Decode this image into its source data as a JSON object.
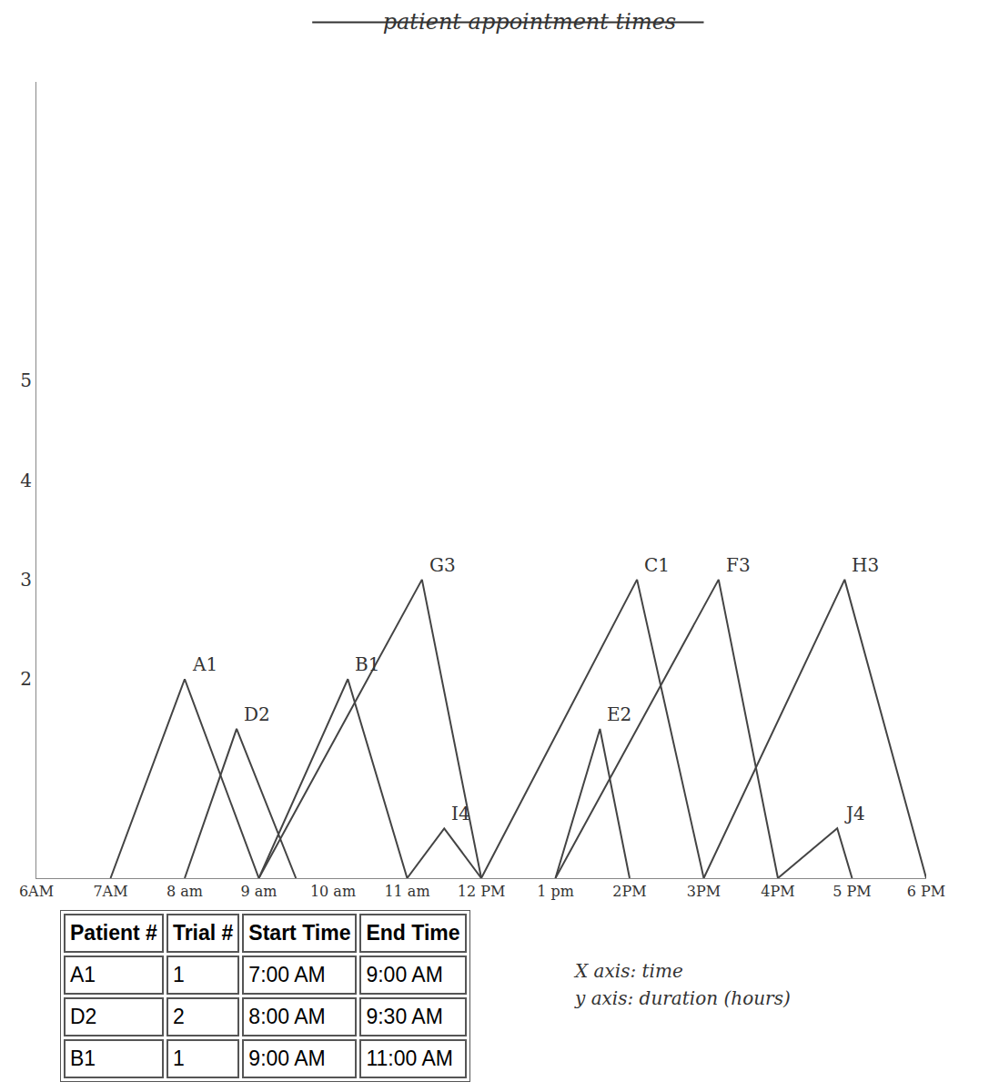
{
  "chart_data": {
    "type": "line",
    "title": "patient appointment times",
    "xlim": [
      6,
      18
    ],
    "xticks": [
      {
        "value": 6,
        "label": "6AM"
      },
      {
        "value": 7,
        "label": "7AM"
      },
      {
        "value": 8,
        "label": "8 am"
      },
      {
        "value": 9,
        "label": "9 am"
      },
      {
        "value": 10,
        "label": "10 am"
      },
      {
        "value": 11,
        "label": "11 am"
      },
      {
        "value": 12,
        "label": "12 PM"
      },
      {
        "value": 13,
        "label": "1 pm"
      },
      {
        "value": 14,
        "label": "2PM"
      },
      {
        "value": 15,
        "label": "3PM"
      },
      {
        "value": 16,
        "label": "4PM"
      },
      {
        "value": 17,
        "label": "5 PM"
      },
      {
        "value": 18,
        "label": "6 PM"
      }
    ],
    "ylim": [
      0,
      8
    ],
    "yticks": [
      2,
      3,
      4,
      5
    ],
    "grid": false,
    "series": [
      {
        "name": "A1",
        "color": "#444444",
        "x": [
          7,
          8,
          9
        ],
        "values": [
          0,
          2,
          0
        ]
      },
      {
        "name": "D2",
        "color": "#444444",
        "x": [
          8,
          8.7,
          9.5
        ],
        "values": [
          0,
          1.5,
          0
        ]
      },
      {
        "name": "B1",
        "color": "#444444",
        "x": [
          9,
          10.2,
          11
        ],
        "values": [
          0,
          2,
          0
        ]
      },
      {
        "name": "G3",
        "color": "#444444",
        "x": [
          9,
          11.2,
          12
        ],
        "values": [
          0,
          3,
          0
        ]
      },
      {
        "name": "I4",
        "color": "#444444",
        "x": [
          11,
          11.5,
          12
        ],
        "values": [
          0,
          0.5,
          0
        ]
      },
      {
        "name": "C1",
        "color": "#444444",
        "x": [
          12,
          14.1,
          15
        ],
        "values": [
          0,
          3,
          0
        ]
      },
      {
        "name": "E2",
        "color": "#444444",
        "x": [
          13,
          13.6,
          14
        ],
        "values": [
          0,
          1.5,
          0
        ]
      },
      {
        "name": "F3",
        "color": "#444444",
        "x": [
          13,
          15.2,
          16
        ],
        "values": [
          0,
          3,
          0
        ]
      },
      {
        "name": "H3",
        "color": "#444444",
        "x": [
          15,
          16.9,
          18
        ],
        "values": [
          0,
          3,
          0
        ]
      },
      {
        "name": "J4",
        "color": "#444444",
        "x": [
          16,
          16.8,
          17
        ],
        "values": [
          0,
          0.5,
          0
        ]
      }
    ],
    "annotations": [
      "X axis: time",
      "y axis: duration (hours)"
    ]
  },
  "table": {
    "header": [
      "Patient #",
      "Trial #",
      "Start Time",
      "End Time"
    ],
    "rows": [
      [
        "A1",
        "1",
        "7:00 AM",
        "9:00 AM"
      ],
      [
        "D2",
        "2",
        "8:00 AM",
        "9:30 AM"
      ],
      [
        "B1",
        "1",
        "9:00 AM",
        "11:00 AM"
      ]
    ]
  }
}
